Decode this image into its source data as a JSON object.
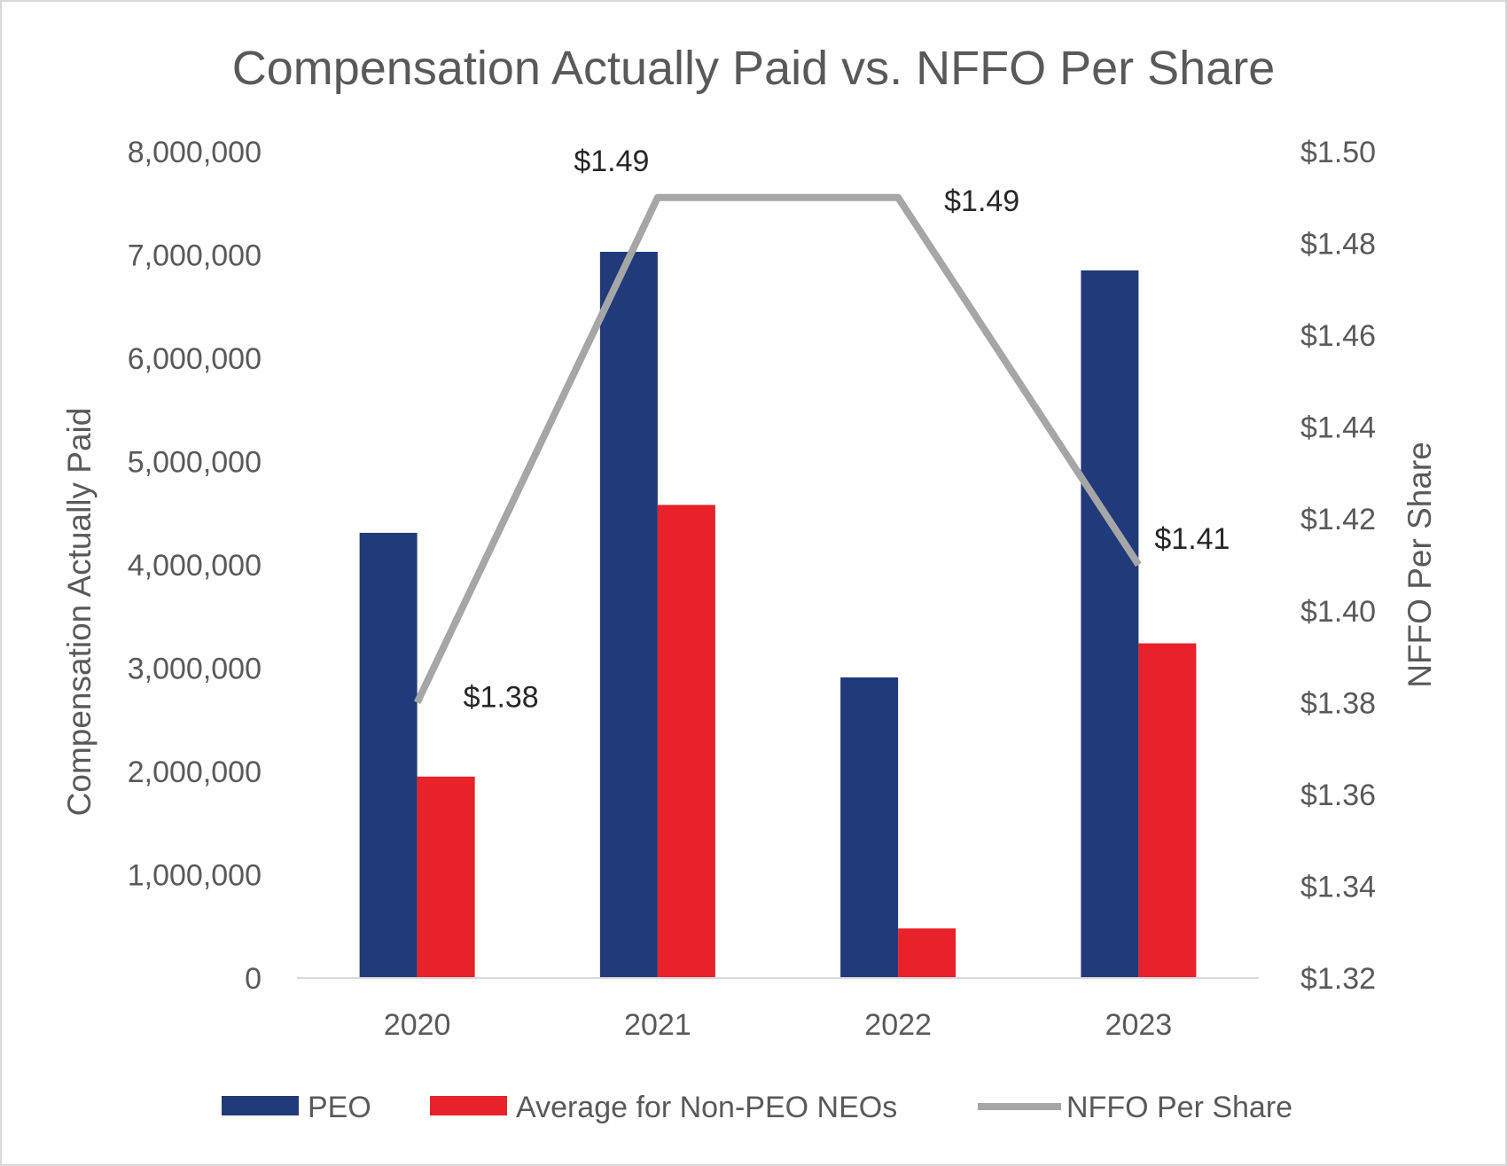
{
  "chart_data": {
    "type": "bar",
    "title": "Compensation Actually Paid vs. NFFO Per Share",
    "categories": [
      "2020",
      "2021",
      "2022",
      "2023"
    ],
    "series": [
      {
        "name": "PEO",
        "kind": "bar",
        "axis": "left",
        "color": "#203a7a",
        "values": [
          4310000,
          7030000,
          2910000,
          6850000
        ]
      },
      {
        "name": "Average for Non-PEO NEOs",
        "kind": "bar",
        "axis": "left",
        "color": "#e8212a",
        "values": [
          1950000,
          4580000,
          480000,
          3240000
        ]
      },
      {
        "name": "NFFO Per Share",
        "kind": "line",
        "axis": "right",
        "color": "#a6a6a6",
        "values": [
          1.38,
          1.49,
          1.49,
          1.41
        ],
        "labels": [
          "$1.38",
          "$1.49",
          "$1.49",
          "$1.41"
        ]
      }
    ],
    "ylabel": "Compensation Actually Paid",
    "ylim": [
      0,
      8000000
    ],
    "yticks": [
      "0",
      "1,000,000",
      "2,000,000",
      "3,000,000",
      "4,000,000",
      "5,000,000",
      "6,000,000",
      "7,000,000",
      "8,000,000"
    ],
    "y2label": "NFFO Per Share",
    "y2lim": [
      1.32,
      1.5
    ],
    "y2ticks": [
      "$1.32",
      "$1.34",
      "$1.36",
      "$1.38",
      "$1.40",
      "$1.42",
      "$1.44",
      "$1.46",
      "$1.48",
      "$1.50"
    ],
    "legend_position": "bottom",
    "grid": false
  }
}
